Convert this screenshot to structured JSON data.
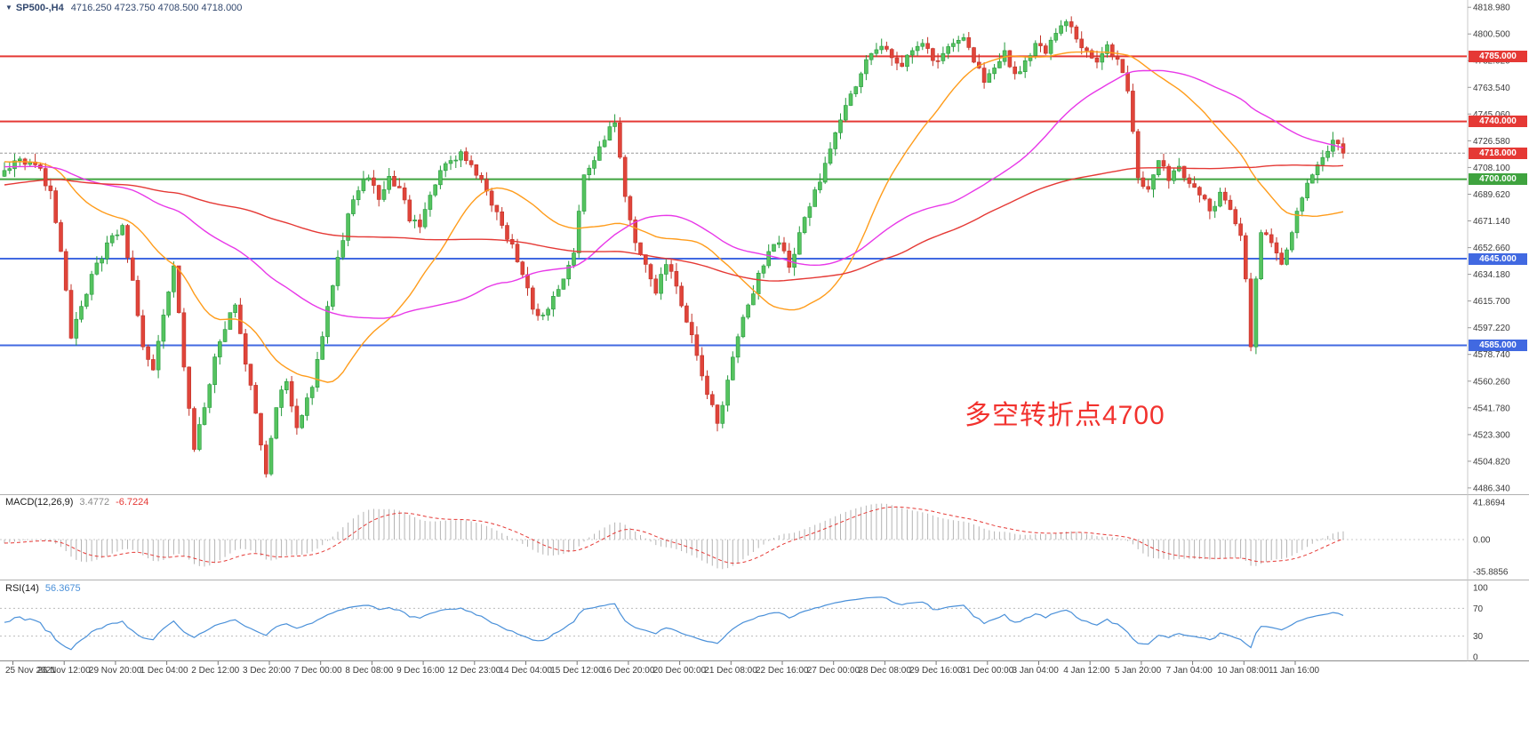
{
  "header": {
    "marker": "▼",
    "symbol": "SP500-,H4",
    "ohlc": "4716.250 4723.750 4708.500 4718.000",
    "color": "#31476e"
  },
  "annotation": {
    "text": "多空转折点4700",
    "color": "#f2322e"
  },
  "indicators": {
    "macd": {
      "label": "MACD(12,26,9)",
      "main_value": "3.4772",
      "signal_value": "-6.7224",
      "axis_labels": [
        "41.8694",
        "0.00",
        "-35.8856"
      ],
      "histogram_color": "#b4b4b4",
      "signal_color": "#e53935",
      "vmax": 50,
      "vmin": -45
    },
    "rsi": {
      "label": "RSI(14)",
      "value": "56.3675",
      "axis_labels": [
        "100",
        "70",
        "30",
        "0"
      ],
      "levels": [
        70,
        30
      ],
      "line_color": "#4a90d9"
    }
  },
  "chart_data": {
    "type": "candlestick",
    "title": "SP500- H4",
    "symbol": "SP500-",
    "timeframe": "H4",
    "display_ohlc": {
      "open": "4716.250",
      "high": "4723.750",
      "low": "4708.500",
      "close": "4718.000"
    },
    "bars_visible": 262,
    "grid": false,
    "legend": false,
    "y_axis": {
      "min": 4486.34,
      "max": 4818.98,
      "step": 18.48,
      "labels": [
        "4486.340",
        "4504.820",
        "4523.300",
        "4541.780",
        "4560.260",
        "4578.740",
        "4597.220",
        "4615.700",
        "4634.180",
        "4652.660",
        "4671.140",
        "4689.620",
        "4708.100",
        "4726.580",
        "4745.060",
        "4763.540",
        "4782.020",
        "4800.500",
        "4818.980"
      ]
    },
    "x_labels": [
      "25 Nov 2021",
      "26 Nov 12:00",
      "29 Nov 20:00",
      "1 Dec 04:00",
      "2 Dec 12:00",
      "3 Dec 20:00",
      "7 Dec 00:00",
      "8 Dec 08:00",
      "9 Dec 16:00",
      "12 Dec 23:00",
      "14 Dec 04:00",
      "15 Dec 12:00",
      "16 Dec 20:00",
      "20 Dec 00:00",
      "21 Dec 08:00",
      "22 Dec 16:00",
      "27 Dec 00:00",
      "28 Dec 08:00",
      "29 Dec 16:00",
      "31 Dec 00:00",
      "3 Jan 04:00",
      "4 Jan 12:00",
      "5 Jan 20:00",
      "7 Jan 04:00",
      "10 Jan 08:00",
      "11 Jan 16:00"
    ],
    "levels": [
      {
        "label": "4785.000",
        "value": 4785,
        "type": "resistance",
        "color": "#e53935"
      },
      {
        "label": "4740.000",
        "value": 4740,
        "type": "resistance",
        "color": "#e53935"
      },
      {
        "label": "4718.000",
        "value": 4718,
        "type": "current_price",
        "color": "#e53935"
      },
      {
        "label": "4700.000",
        "value": 4700,
        "type": "pivot",
        "color": "#3fa33f"
      },
      {
        "label": "4645.000",
        "value": 4645,
        "type": "support",
        "color": "#4169e1"
      },
      {
        "label": "4585.000",
        "value": 4585,
        "type": "support",
        "color": "#4169e1"
      }
    ],
    "moving_averages": [
      {
        "period": 30,
        "color": "#ff9c1b"
      },
      {
        "period": 65,
        "color": "#e838e8"
      },
      {
        "period": 140,
        "color": "#e53935"
      }
    ],
    "candle_colors": {
      "up_fill": "#55c35f",
      "up_stroke": "#259a3c",
      "down_fill": "#e0443a",
      "down_stroke": "#c23328"
    },
    "price_path_waypoints": [
      [
        0,
        4706
      ],
      [
        3,
        4714
      ],
      [
        6,
        4710
      ],
      [
        9,
        4692
      ],
      [
        11,
        4650
      ],
      [
        13,
        4590
      ],
      [
        15,
        4612
      ],
      [
        18,
        4642
      ],
      [
        21,
        4661
      ],
      [
        23,
        4668
      ],
      [
        25,
        4630
      ],
      [
        27,
        4584
      ],
      [
        29,
        4568
      ],
      [
        31,
        4606
      ],
      [
        33,
        4640
      ],
      [
        35,
        4570
      ],
      [
        37,
        4513
      ],
      [
        39,
        4542
      ],
      [
        41,
        4577
      ],
      [
        43,
        4596
      ],
      [
        45,
        4613
      ],
      [
        47,
        4572
      ],
      [
        49,
        4538
      ],
      [
        51,
        4496
      ],
      [
        53,
        4542
      ],
      [
        55,
        4560
      ],
      [
        57,
        4528
      ],
      [
        60,
        4556
      ],
      [
        63,
        4612
      ],
      [
        65,
        4646
      ],
      [
        67,
        4676
      ],
      [
        69,
        4692
      ],
      [
        71,
        4701
      ],
      [
        73,
        4686
      ],
      [
        75,
        4702
      ],
      [
        77,
        4694
      ],
      [
        79,
        4671
      ],
      [
        81,
        4667
      ],
      [
        83,
        4689
      ],
      [
        85,
        4706
      ],
      [
        87,
        4713
      ],
      [
        89,
        4719
      ],
      [
        91,
        4710
      ],
      [
        93,
        4700
      ],
      [
        95,
        4682
      ],
      [
        97,
        4668
      ],
      [
        99,
        4655
      ],
      [
        101,
        4634
      ],
      [
        103,
        4610
      ],
      [
        105,
        4606
      ],
      [
        107,
        4619
      ],
      [
        109,
        4631
      ],
      [
        111,
        4649
      ],
      [
        113,
        4703
      ],
      [
        115,
        4713
      ],
      [
        117,
        4727
      ],
      [
        119,
        4739
      ],
      [
        121,
        4688
      ],
      [
        123,
        4656
      ],
      [
        125,
        4641
      ],
      [
        127,
        4621
      ],
      [
        129,
        4641
      ],
      [
        131,
        4626
      ],
      [
        133,
        4601
      ],
      [
        135,
        4578
      ],
      [
        137,
        4551
      ],
      [
        139,
        4531
      ],
      [
        141,
        4561
      ],
      [
        143,
        4591
      ],
      [
        145,
        4613
      ],
      [
        147,
        4635
      ],
      [
        149,
        4650
      ],
      [
        151,
        4656
      ],
      [
        153,
        4639
      ],
      [
        155,
        4663
      ],
      [
        157,
        4681
      ],
      [
        159,
        4698
      ],
      [
        161,
        4721
      ],
      [
        163,
        4741
      ],
      [
        165,
        4759
      ],
      [
        167,
        4773
      ],
      [
        169,
        4787
      ],
      [
        171,
        4792
      ],
      [
        173,
        4784
      ],
      [
        175,
        4778
      ],
      [
        177,
        4789
      ],
      [
        179,
        4794
      ],
      [
        181,
        4782
      ],
      [
        183,
        4787
      ],
      [
        185,
        4794
      ],
      [
        187,
        4798
      ],
      [
        189,
        4781
      ],
      [
        191,
        4767
      ],
      [
        193,
        4777
      ],
      [
        195,
        4789
      ],
      [
        197,
        4773
      ],
      [
        199,
        4782
      ],
      [
        201,
        4794
      ],
      [
        203,
        4787
      ],
      [
        205,
        4801
      ],
      [
        207,
        4809
      ],
      [
        209,
        4797
      ],
      [
        211,
        4789
      ],
      [
        213,
        4781
      ],
      [
        215,
        4793
      ],
      [
        217,
        4783
      ],
      [
        219,
        4761
      ],
      [
        220,
        4733
      ],
      [
        221,
        4701
      ],
      [
        223,
        4693
      ],
      [
        225,
        4713
      ],
      [
        227,
        4699
      ],
      [
        229,
        4709
      ],
      [
        231,
        4697
      ],
      [
        233,
        4689
      ],
      [
        235,
        4678
      ],
      [
        237,
        4691
      ],
      [
        239,
        4679
      ],
      [
        241,
        4661
      ],
      [
        242,
        4631
      ],
      [
        243,
        4584
      ],
      [
        244,
        4631
      ],
      [
        245,
        4663
      ],
      [
        247,
        4656
      ],
      [
        249,
        4641
      ],
      [
        251,
        4663
      ],
      [
        253,
        4687
      ],
      [
        255,
        4703
      ],
      [
        257,
        4715
      ],
      [
        259,
        4727
      ],
      [
        261,
        4718
      ]
    ],
    "warmup_waypoints": [
      [
        -140,
        4640
      ],
      [
        -120,
        4680
      ],
      [
        -100,
        4690
      ],
      [
        -80,
        4700
      ],
      [
        -60,
        4710
      ],
      [
        -40,
        4700
      ],
      [
        -25,
        4715
      ],
      [
        -18,
        4740
      ],
      [
        -12,
        4705
      ],
      [
        -6,
        4690
      ],
      [
        -1,
        4702
      ]
    ]
  }
}
